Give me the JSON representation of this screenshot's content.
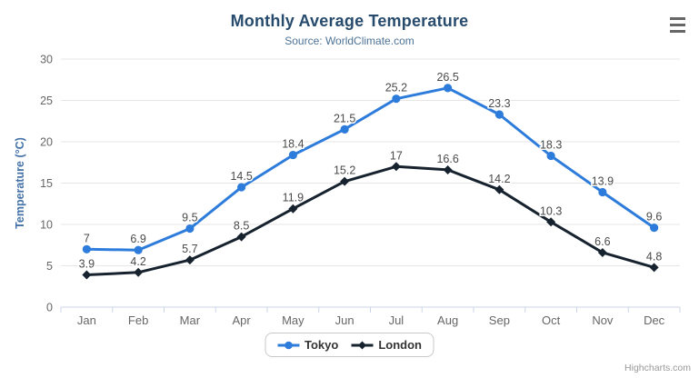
{
  "chart": {
    "title": "Monthly Average Temperature",
    "subtitle": "Source: WorldClimate.com"
  },
  "chart_data": {
    "type": "line",
    "title": "Monthly Average Temperature",
    "subtitle": "Source: WorldClimate.com",
    "categories": [
      "Jan",
      "Feb",
      "Mar",
      "Apr",
      "May",
      "Jun",
      "Jul",
      "Aug",
      "Sep",
      "Oct",
      "Nov",
      "Dec"
    ],
    "series": [
      {
        "name": "Tokyo",
        "color": "#2d7cdb",
        "marker": "circle",
        "values": [
          7,
          6.9,
          9.5,
          14.5,
          18.4,
          21.5,
          25.2,
          26.5,
          23.3,
          18.3,
          13.9,
          9.6
        ]
      },
      {
        "name": "London",
        "color": "#17222f",
        "marker": "diamond",
        "values": [
          3.9,
          4.2,
          5.7,
          8.5,
          11.9,
          15.2,
          17,
          16.6,
          14.2,
          10.3,
          6.6,
          4.8
        ]
      }
    ],
    "xlabel": "",
    "ylabel": "Temperature (°C)",
    "ylim": [
      0,
      30
    ],
    "yticks": [
      0,
      5,
      10,
      15,
      20,
      25,
      30
    ],
    "grid": true,
    "data_labels": true,
    "legend_position": "bottom"
  },
  "styles": {
    "grid_color": "#e6e6e6",
    "axis_line_color": "#ccd6eb",
    "axis_label_color": "#666666",
    "yaxis_title_color": "#4572a7",
    "data_label_color": "#4a4a4a",
    "title_color": "#274b6d",
    "subtitle_color": "#4e7397"
  },
  "menu": {
    "icon": "hamburger-icon"
  },
  "credits": {
    "text": "Highcharts.com"
  }
}
